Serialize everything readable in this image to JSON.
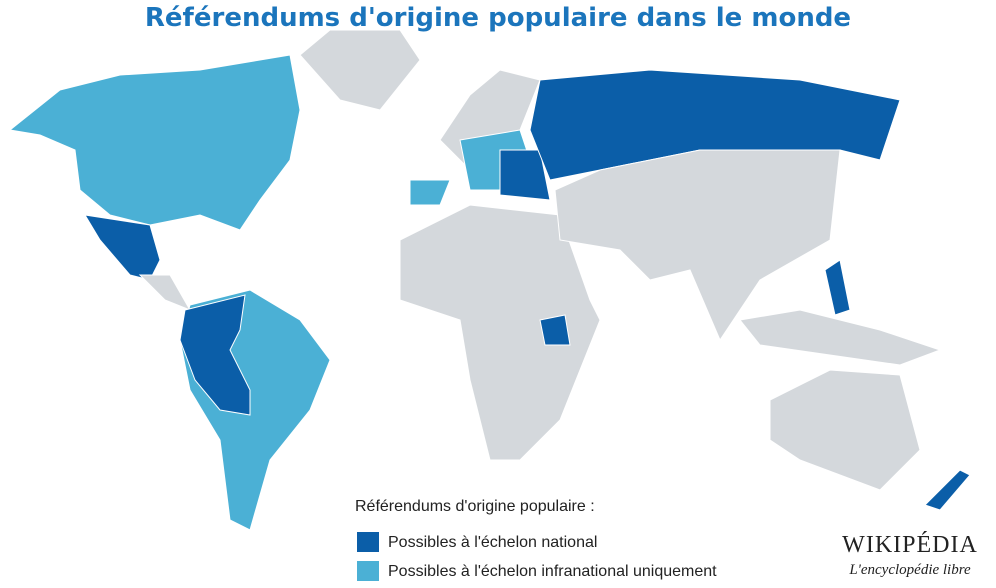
{
  "title": "Référendums d'origine populaire dans le monde",
  "legend": {
    "title": "Référendums d'origine populaire :",
    "items": [
      {
        "label": "Possibles à l'échelon national",
        "color": "#0b5ea8"
      },
      {
        "label": "Possibles à l'échelon infranational uniquement",
        "color": "#4bb0d5"
      }
    ]
  },
  "logo": {
    "name": "WIKIPÉDIA",
    "tagline": "L'encyclopédie libre"
  }
}
